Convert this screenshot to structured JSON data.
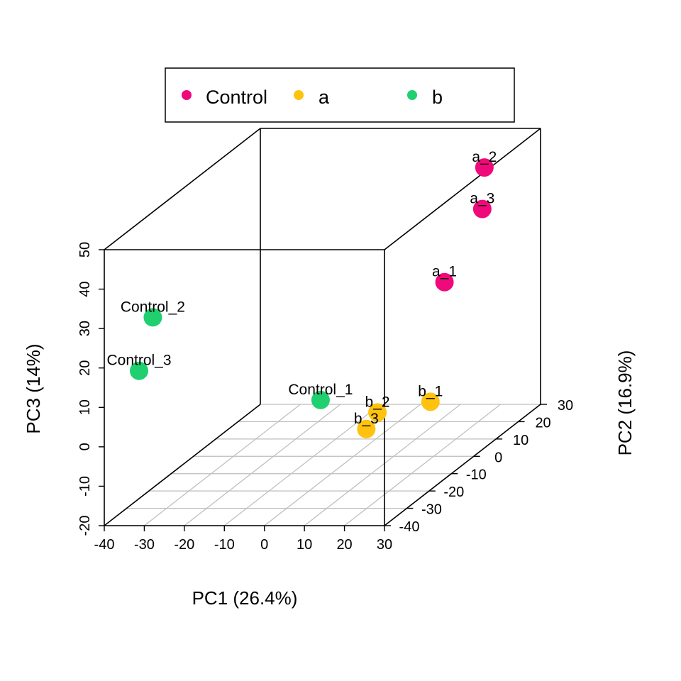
{
  "chart_data": {
    "type": "scatter",
    "subtype": "3d-scatter",
    "xlabel": "PC1 (26.4%)",
    "ylabel": "PC2 (16.9%)",
    "zlabel": "PC3 (14%)",
    "xlim": [
      -40,
      30
    ],
    "ylim": [
      -40,
      30
    ],
    "zlim": [
      -20,
      50
    ],
    "x_ticks": [
      "-40",
      "-30",
      "-20",
      "-10",
      "0",
      "10",
      "20",
      "30"
    ],
    "y_ticks": [
      "-40",
      "-30",
      "-20",
      "-10",
      "0",
      "10",
      "20",
      "30"
    ],
    "z_ticks": [
      "-20",
      "-10",
      "0",
      "10",
      "20",
      "30",
      "40",
      "50"
    ],
    "grid": "on (x-y floor plane)",
    "legend_position": "top",
    "legend": [
      {
        "label": "Control",
        "color": "#F0097B"
      },
      {
        "label": "a",
        "color": "#FFC20E"
      },
      {
        "label": "b",
        "color": "#20D070"
      }
    ],
    "points": [
      {
        "label": "a_2",
        "group": "Control",
        "x": 26,
        "y": 12,
        "z": 48
      },
      {
        "label": "a_3",
        "group": "Control",
        "x": 16,
        "y": 29,
        "z": 30
      },
      {
        "label": "a_1",
        "group": "Control",
        "x": 6,
        "y": 30,
        "z": 11
      },
      {
        "label": "b_1",
        "group": "a",
        "x": 27,
        "y": -14,
        "z": 0
      },
      {
        "label": "b_2",
        "group": "a",
        "x": 21,
        "y": -27,
        "z": 3
      },
      {
        "label": "b_3",
        "group": "a",
        "x": 21,
        "y": -32,
        "z": 1
      },
      {
        "label": "Control_1",
        "group": "b",
        "x": -1,
        "y": -13,
        "z": 0
      },
      {
        "label": "Control_2",
        "group": "b",
        "x": -34,
        "y": -29,
        "z": 28
      },
      {
        "label": "Control_3",
        "group": "b",
        "x": -38,
        "y": -28,
        "z": 14
      }
    ]
  }
}
